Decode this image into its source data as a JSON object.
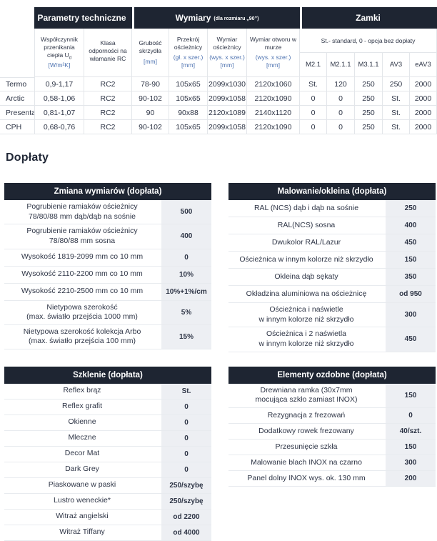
{
  "colors": {
    "header_bg": "#1e2532",
    "value_column_bg": "#edeff3",
    "unit_text": "#4d72b0",
    "body_text": "#2e3546",
    "border": "#e3e6ea"
  },
  "section_title": "Dopłaty",
  "spec_table": {
    "group_headers": [
      {
        "label": "Parametry techniczne",
        "sub": ""
      },
      {
        "label": "Wymiary",
        "sub": "(dla rozmiaru „90”)"
      },
      {
        "label": "Zamki",
        "sub": ""
      }
    ],
    "zamki_note": "St.- standard,  0 - opcja bez dopłaty",
    "columns": [
      {
        "title": "Współczynnik przenikania ciepła U",
        "title_sub": "d",
        "unit": "[W/m²K]"
      },
      {
        "title": "Klasa odporności na włamanie RC",
        "title_sub": "",
        "unit": ""
      },
      {
        "title": "Grubość skrzydła",
        "title_sub": "",
        "unit": "[mm]"
      },
      {
        "title": "Przekrój ościeżnicy",
        "title_sub": "",
        "unit": "(gł. x szer.)\n[mm]"
      },
      {
        "title": "Wymiar ościeżnicy",
        "title_sub": "",
        "unit": "(wys. x szer.)\n[mm]"
      },
      {
        "title": "Wymiar otworu w murze",
        "title_sub": "",
        "unit": "(wys. x  szer.)\n[mm]"
      }
    ],
    "lock_columns": [
      "M2.1",
      "M2.1.1",
      "M3.1.1",
      "AV3",
      "eAV3"
    ],
    "rows": [
      {
        "name": "Termo",
        "cells": [
          "0,9-1,17",
          "RC2",
          "78-90",
          "105x65",
          "2099x1030",
          "2120x1060",
          "St.",
          "120",
          "250",
          "250",
          "2000"
        ]
      },
      {
        "name": "Arctic",
        "cells": [
          "0,58-1,06",
          "RC2",
          "90-102",
          "105x65",
          "2099x1058",
          "2120x1090",
          "0",
          "0",
          "250",
          "St.",
          "2000"
        ]
      },
      {
        "name": "Presenta",
        "cells": [
          "0,81-1,07",
          "RC2",
          "90",
          "90x88",
          "2120x1089",
          "2140x1120",
          "0",
          "0",
          "250",
          "St.",
          "2000"
        ]
      },
      {
        "name": "CPH",
        "cells": [
          "0,68-0,76",
          "RC2",
          "90-102",
          "105x65",
          "2099x1058",
          "2120x1090",
          "0",
          "0",
          "250",
          "St.",
          "2000"
        ]
      }
    ]
  },
  "addon_tables": [
    {
      "title": "Zmiana wymiarów (dopłata)",
      "rows": [
        {
          "label": "Pogrubienie ramiaków ościeżnicy\n78/80/88 mm dąb/dąb na sośnie",
          "value": "500"
        },
        {
          "label": "Pogrubienie ramiaków ościeżnicy\n78/80/88 mm sosna",
          "value": "400"
        },
        {
          "label": "Wysokość 1819-2099 mm co 10 mm",
          "value": "0"
        },
        {
          "label": "Wysokość 2110-2200 mm co 10 mm",
          "value": "10%"
        },
        {
          "label": "Wysokość 2210-2500 mm co 10 mm",
          "value": "10%+1%/cm"
        },
        {
          "label": "Nietypowa szerokość\n(max. światło przejścia 1000 mm)",
          "value": "5%"
        },
        {
          "label": "Nietypowa szerokość kolekcja Arbo\n(max. światło przejścia 100 mm)",
          "value": "15%"
        }
      ]
    },
    {
      "title": "Malowanie/okleina (dopłata)",
      "rows": [
        {
          "label": "RAL (NCS) dąb i dąb na sośnie",
          "value": "250"
        },
        {
          "label": "RAL(NCS) sosna",
          "value": "400"
        },
        {
          "label": "Dwukolor RAL/Lazur",
          "value": "450"
        },
        {
          "label": "Ościeżnica w innym kolorze niż skrzydło",
          "value": "150"
        },
        {
          "label": "Okleina dąb sękaty",
          "value": "350"
        },
        {
          "label": "Okładzina aluminiowa na ościeżnicę",
          "value": "od 950"
        },
        {
          "label": "Ościeżnica i naświetle\nw innym kolorze niż skrzydło",
          "value": "300"
        },
        {
          "label": "Ościeżnica i 2 naświetla\nw innym kolorze niż skrzydło",
          "value": "450"
        }
      ]
    },
    {
      "title": "Szklenie (dopłata)",
      "rows": [
        {
          "label": "Reflex brąz",
          "value": "St."
        },
        {
          "label": "Reflex grafit",
          "value": "0"
        },
        {
          "label": "Okienne",
          "value": "0"
        },
        {
          "label": "Mleczne",
          "value": "0"
        },
        {
          "label": "Decor Mat",
          "value": "0"
        },
        {
          "label": "Dark Grey",
          "value": "0"
        },
        {
          "label": "Piaskowane w paski",
          "value": "250/szybę"
        },
        {
          "label": "Lustro weneckie*",
          "value": "250/szybę"
        },
        {
          "label": "Witraż angielski",
          "value": "od 2200"
        },
        {
          "label": "Witraż Tiffany",
          "value": "od 4000"
        }
      ]
    },
    {
      "title": "Elementy ozdobne (dopłata)",
      "rows": [
        {
          "label": "Drewniana ramka (30x7mm\nmocująca szkło zamiast INOX)",
          "value": "150"
        },
        {
          "label": "Rezygnacja z frezowań",
          "value": "0"
        },
        {
          "label": "Dodatkowy rowek frezowany",
          "value": "40/szt."
        },
        {
          "label": "Przesunięcie szkła",
          "value": "150"
        },
        {
          "label": "Malowanie blach INOX na czarno",
          "value": "300"
        },
        {
          "label": "Panel dolny INOX wys. ok. 130 mm",
          "value": "200"
        }
      ]
    }
  ]
}
